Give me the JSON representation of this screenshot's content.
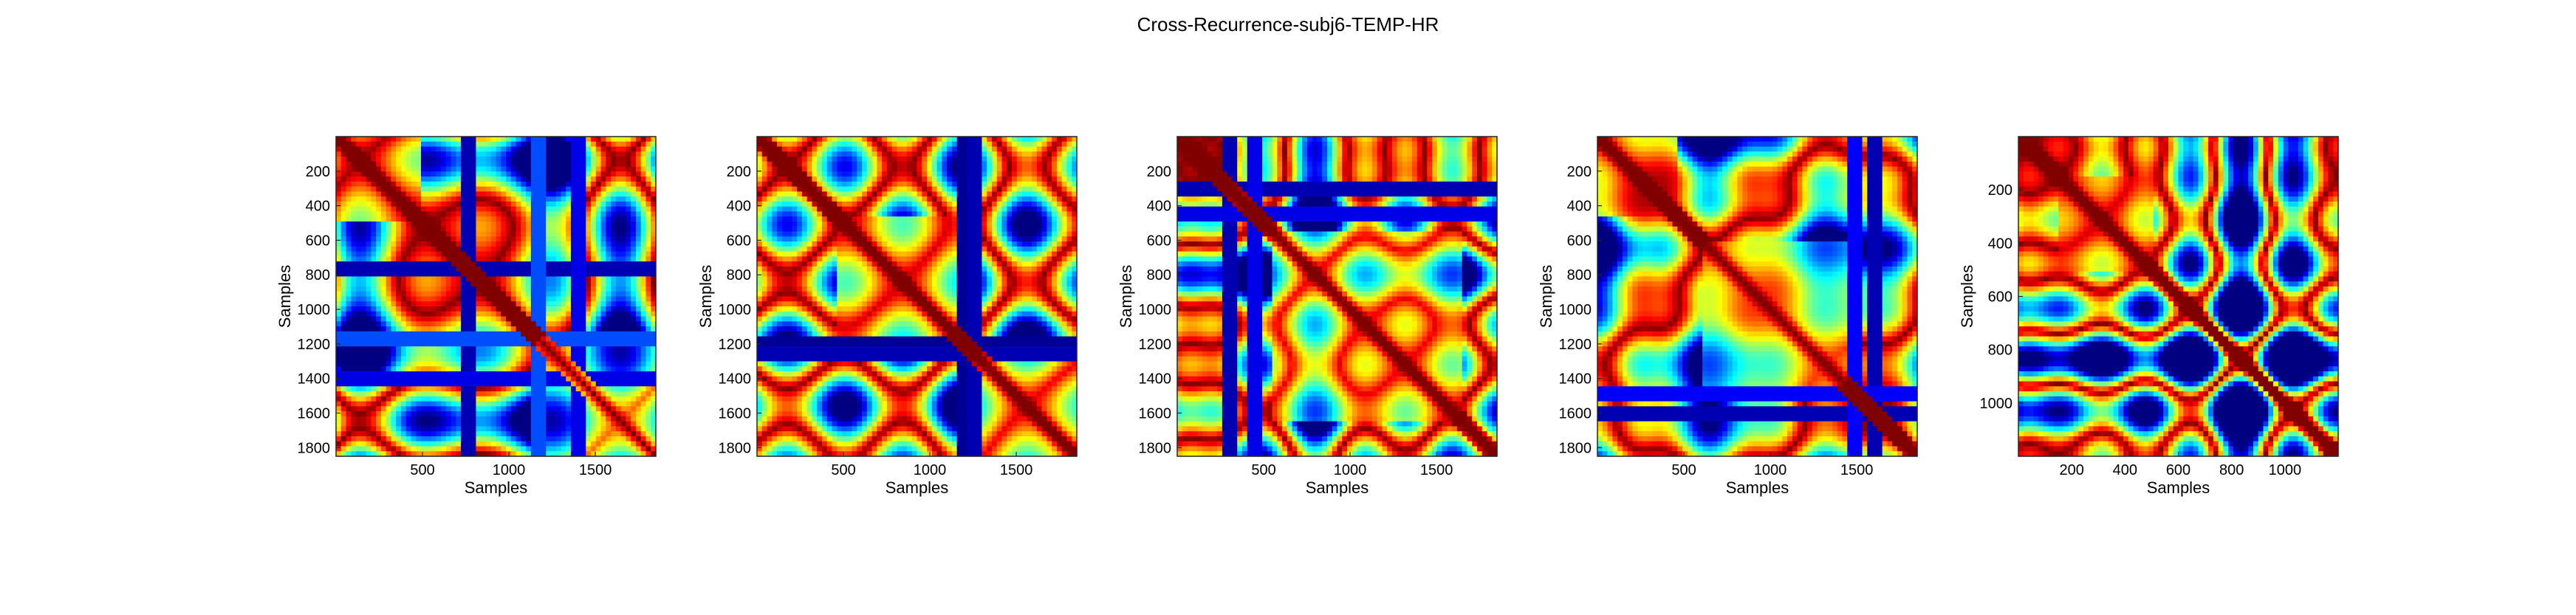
{
  "figure": {
    "title": "Cross-Recurrence-subj6-TEMP-HR"
  },
  "colormap": "jet",
  "chart_data": [
    {
      "type": "heatmap",
      "xlabel": "Samples",
      "ylabel": "Samples",
      "xlim": [
        0,
        1850
      ],
      "ylim": [
        0,
        1850
      ],
      "y_reversed": true,
      "xticks": [
        500,
        1000,
        1500
      ],
      "yticks": [
        200,
        400,
        600,
        800,
        1000,
        1200,
        1400,
        1600,
        1800
      ],
      "pattern_seed": 11,
      "blocks": [
        [
          0,
          480,
          0.95
        ],
        [
          1150,
          1850,
          0.55
        ]
      ],
      "bands": [
        [
          760,
          0.05
        ],
        [
          1400,
          0.1
        ],
        [
          1180,
          0.2
        ]
      ]
    },
    {
      "type": "heatmap",
      "xlabel": "Samples",
      "ylabel": "Samples",
      "xlim": [
        0,
        1850
      ],
      "ylim": [
        0,
        1850
      ],
      "y_reversed": true,
      "xticks": [
        500,
        1000,
        1500
      ],
      "yticks": [
        200,
        400,
        600,
        800,
        1000,
        1200,
        1400,
        1600,
        1800
      ],
      "pattern_seed": 23,
      "blocks": [
        [
          450,
          1150,
          0.85
        ],
        [
          1300,
          1850,
          0.8
        ]
      ],
      "bands": [
        [
          1200,
          0.02
        ],
        [
          1250,
          0.05
        ]
      ]
    },
    {
      "type": "heatmap",
      "xlabel": "Samples",
      "ylabel": "Samples",
      "xlim": [
        0,
        1850
      ],
      "ylim": [
        0,
        1850
      ],
      "y_reversed": true,
      "xticks": [
        500,
        1000,
        1500
      ],
      "yticks": [
        200,
        400,
        600,
        800,
        1000,
        1200,
        1400,
        1600,
        1800
      ],
      "pattern_seed": 37,
      "blocks": [
        [
          550,
          1650,
          0.8
        ]
      ],
      "bands": [
        [
          300,
          0.05
        ],
        [
          450,
          0.1
        ]
      ]
    },
    {
      "type": "heatmap",
      "xlabel": "Samples",
      "ylabel": "Samples",
      "xlim": [
        0,
        1850
      ],
      "ylim": [
        0,
        1850
      ],
      "y_reversed": true,
      "xticks": [
        500,
        1000,
        1500
      ],
      "yticks": [
        200,
        400,
        600,
        800,
        1000,
        1200,
        1400,
        1600,
        1800
      ],
      "pattern_seed": 53,
      "blocks": [
        [
          0,
          450,
          0.9
        ],
        [
          600,
          1450,
          0.65
        ]
      ],
      "bands": [
        [
          1600,
          0.05
        ],
        [
          1480,
          0.12
        ]
      ]
    },
    {
      "type": "heatmap",
      "xlabel": "Samples",
      "ylabel": "Samples",
      "xlim": [
        0,
        1200
      ],
      "ylim": [
        0,
        1200
      ],
      "y_reversed": true,
      "xticks": [
        200,
        400,
        600,
        800,
        1000
      ],
      "yticks": [
        200,
        400,
        600,
        800,
        1000
      ],
      "pattern_seed": 71,
      "blocks": [
        [
          150,
          500,
          0.85
        ]
      ],
      "bands": []
    }
  ]
}
